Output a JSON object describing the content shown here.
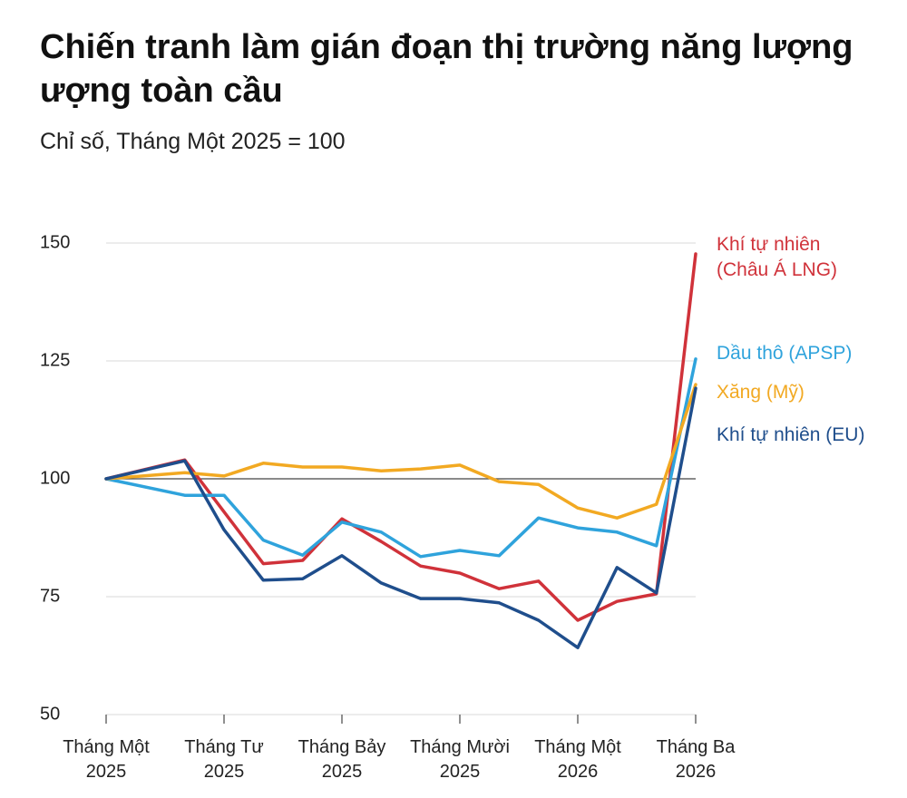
{
  "chart_data": {
    "type": "line",
    "title": "Chiến tranh làm gián đoạn thị trường năng lượng ượng toàn cầu",
    "subtitle": "Chỉ số, Tháng Một 2025 = 100",
    "x": [
      0,
      2,
      3,
      4,
      5,
      6,
      7,
      8,
      9,
      10,
      11,
      12,
      13,
      14,
      15
    ],
    "xlim": [
      0,
      15
    ],
    "xticks": [
      {
        "value": 0,
        "label": "Tháng Một\n2025"
      },
      {
        "value": 3,
        "label": "Tháng Tư\n2025"
      },
      {
        "value": 6,
        "label": "Tháng Bảy\n2025"
      },
      {
        "value": 9,
        "label": "Tháng Mười\n2025"
      },
      {
        "value": 12,
        "label": "Tháng Một\n2026"
      },
      {
        "value": 15,
        "label": "Tháng Ba\n2026"
      }
    ],
    "ylim": [
      50,
      150
    ],
    "yticks": [
      50,
      75,
      100,
      125,
      150
    ],
    "grid": true,
    "reference_line": 100,
    "series": [
      {
        "name": "Khí tự nhiên\n(Châu Á LNG)",
        "color": "#d0323a",
        "values": [
          100,
          104,
          93,
          82,
          82.7,
          91.5,
          86.7,
          81.5,
          80,
          76.7,
          78.3,
          70,
          74,
          75.6,
          147.7
        ]
      },
      {
        "name": "Dầu thô (APSP)",
        "color": "#2fa3dc",
        "values": [
          100,
          96.5,
          96.5,
          87,
          83.8,
          90.8,
          88.7,
          83.5,
          84.8,
          83.7,
          91.7,
          89.6,
          88.7,
          85.8,
          125.4
        ]
      },
      {
        "name": "Xăng (Mỹ)",
        "color": "#f2a922",
        "values": [
          100,
          101.3,
          100.6,
          103.3,
          102.5,
          102.5,
          101.7,
          102.1,
          102.9,
          99.4,
          98.8,
          93.8,
          91.7,
          94.6,
          120
        ]
      },
      {
        "name": "Khí tự nhiên (EU)",
        "color": "#1f4e8c",
        "values": [
          100,
          103.8,
          89.2,
          78.5,
          78.8,
          83.7,
          77.9,
          74.6,
          74.6,
          73.7,
          70,
          64.2,
          81.2,
          75.8,
          119.2
        ]
      }
    ]
  }
}
